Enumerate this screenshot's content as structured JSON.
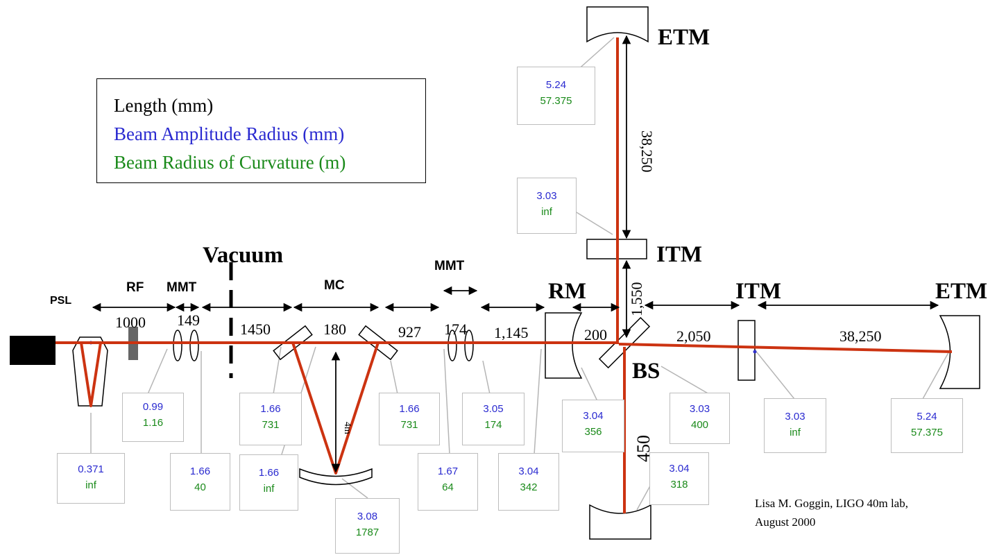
{
  "legend": {
    "length": "Length (mm)",
    "amplitude": "Beam Amplitude Radius (mm)",
    "curvature": "Beam Radius of Curvature (m)"
  },
  "colors": {
    "beam": "#cc3311",
    "amplitude": "#2a2ad0",
    "curvature": "#1a8a1a",
    "leader": "#b5b5b5"
  },
  "components": {
    "etm_top": "ETM",
    "itm_top": "ITM",
    "itm_right": "ITM",
    "etm_right": "ETM",
    "rm": "RM",
    "bs": "BS",
    "mc": "MC",
    "mmt_left": "MMT",
    "mmt_right": "MMT",
    "rf": "RF",
    "psl": "PSL",
    "vacuum": "Vacuum"
  },
  "lengths": {
    "psl_rf": "1000",
    "mmt1": "149",
    "vac_mc": "1450",
    "mc_flat": "180",
    "mc_out": "927",
    "mmt2": "174",
    "mmt_rm": "1,145",
    "rm_bs": "200",
    "bs_itm_y": "1,550",
    "bs_itm_x": "2,050",
    "arm_x": "38,250",
    "arm_y": "38,250",
    "bs_bottom": "450",
    "mc_leg": "4m"
  },
  "beam_params": [
    {
      "amp": "5.24",
      "roc": "57.375"
    },
    {
      "amp": "3.03",
      "roc": "inf"
    },
    {
      "amp": "0.99",
      "roc": "1.16"
    },
    {
      "amp": "1.66",
      "roc": "731"
    },
    {
      "amp": "1.66",
      "roc": "731"
    },
    {
      "amp": "3.05",
      "roc": "174"
    },
    {
      "amp": "3.04",
      "roc": "356"
    },
    {
      "amp": "3.03",
      "roc": "400"
    },
    {
      "amp": "3.03",
      "roc": "inf"
    },
    {
      "amp": "5.24",
      "roc": "57.375"
    },
    {
      "amp": "0.371",
      "roc": "inf"
    },
    {
      "amp": "1.66",
      "roc": "40"
    },
    {
      "amp": "1.66",
      "roc": "inf"
    },
    {
      "amp": "1.67",
      "roc": "64"
    },
    {
      "amp": "3.04",
      "roc": "342"
    },
    {
      "amp": "3.04",
      "roc": "318"
    },
    {
      "amp": "3.08",
      "roc": "1787"
    }
  ],
  "credit": {
    "line1": "Lisa M. Goggin, LIGO 40m lab,",
    "line2": "August 2000"
  }
}
